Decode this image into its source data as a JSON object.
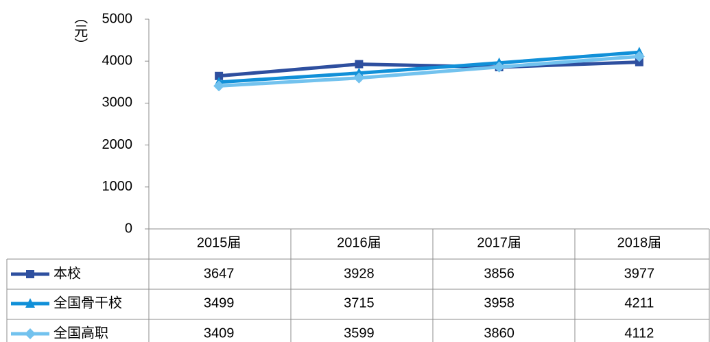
{
  "chart_data": {
    "type": "line",
    "y_label": "（元）",
    "categories": [
      "2015届",
      "2016届",
      "2017届",
      "2018届"
    ],
    "series": [
      {
        "name": "本校",
        "color": "#2e4f9f",
        "marker": "square",
        "values": [
          3647,
          3928,
          3856,
          3977
        ]
      },
      {
        "name": "全国骨干校",
        "color": "#1190d8",
        "marker": "triangle",
        "values": [
          3499,
          3715,
          3958,
          4211
        ]
      },
      {
        "name": "全国高职",
        "color": "#72c2ee",
        "marker": "diamond",
        "values": [
          3409,
          3599,
          3860,
          4112
        ]
      }
    ],
    "ylim": [
      0,
      5000
    ],
    "yticks": [
      0,
      1000,
      2000,
      3000,
      4000,
      5000
    ],
    "grid": false
  }
}
